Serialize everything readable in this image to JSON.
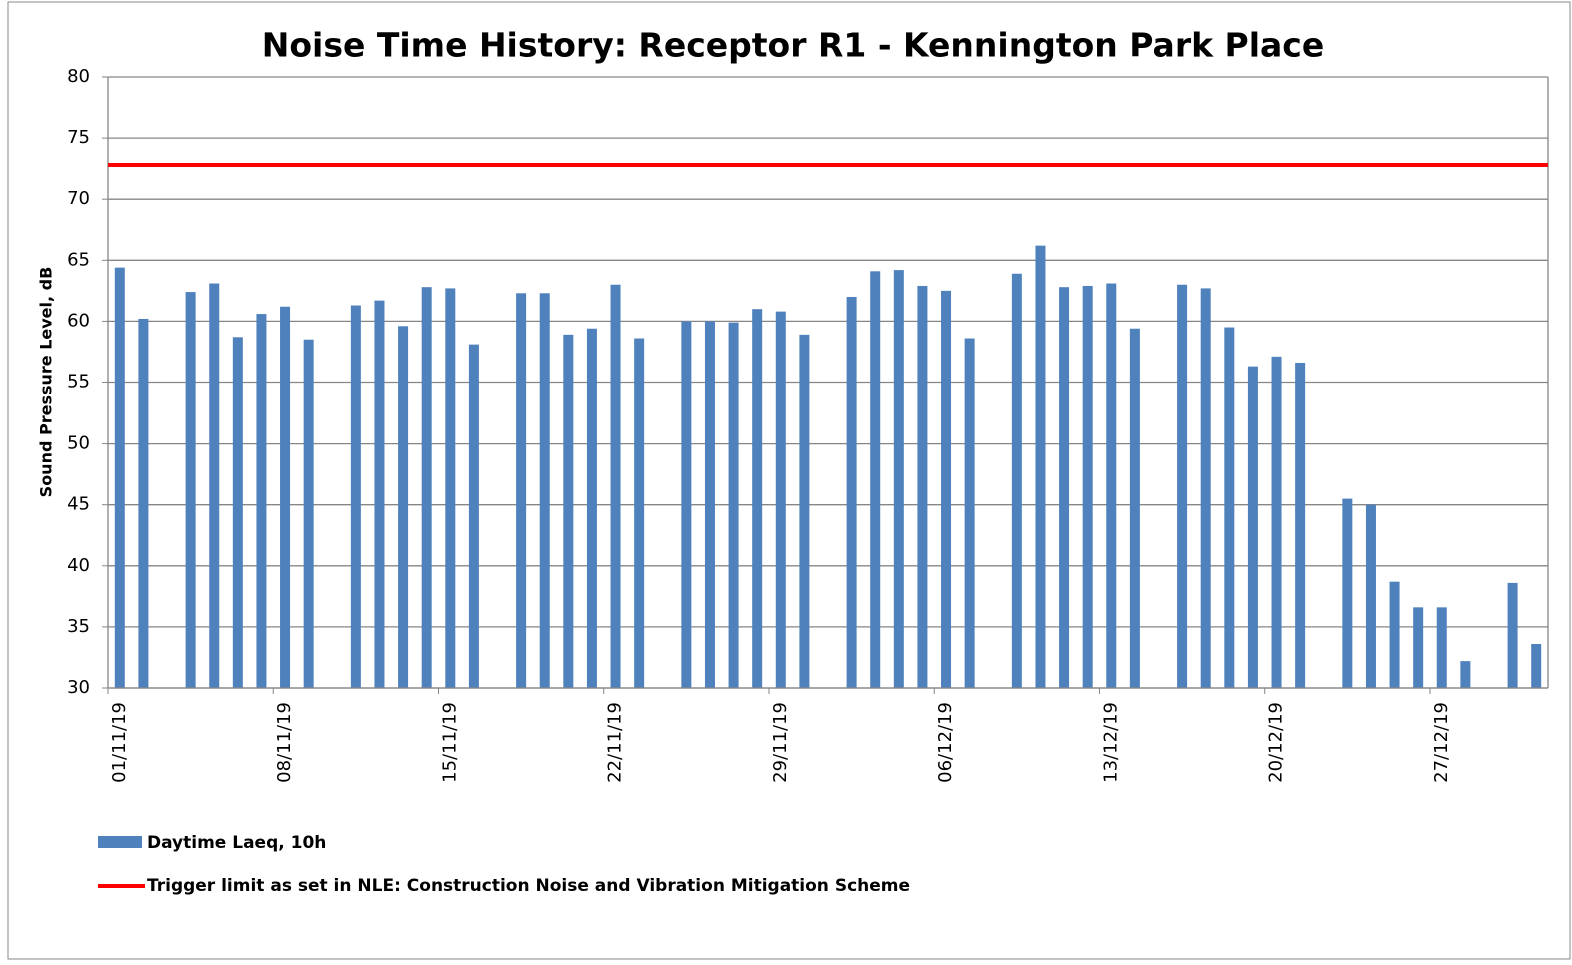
{
  "chart_data": {
    "type": "bar",
    "title": "Noise Time History: Receptor R1 - Kennington Park Place",
    "y_label": "Sound Pressure Level, dB",
    "categories": [
      "01/11/19",
      null,
      null,
      null,
      null,
      null,
      null,
      "08/11/19",
      null,
      null,
      null,
      null,
      null,
      null,
      "15/11/19",
      null,
      null,
      null,
      null,
      null,
      null,
      "22/11/19",
      null,
      null,
      null,
      null,
      null,
      null,
      "29/11/19",
      null,
      null,
      null,
      null,
      null,
      null,
      "06/12/19",
      null,
      null,
      null,
      null,
      null,
      null,
      "13/12/19",
      null,
      null,
      null,
      null,
      null,
      null,
      "20/12/19",
      null,
      null,
      null,
      null,
      null,
      null,
      "27/12/19",
      null,
      null,
      null,
      null
    ],
    "series": [
      {
        "name": "Daytime Laeq, 10h",
        "color": "#4f81bd",
        "values": [
          64.4,
          60.2,
          null,
          62.4,
          63.1,
          58.7,
          60.6,
          61.2,
          58.5,
          null,
          61.3,
          61.7,
          59.6,
          62.8,
          62.7,
          58.1,
          null,
          62.3,
          62.3,
          58.9,
          59.4,
          63.0,
          58.6,
          null,
          60.0,
          60.0,
          59.9,
          61.0,
          60.8,
          58.9,
          null,
          62.0,
          64.1,
          64.2,
          62.9,
          62.5,
          58.6,
          null,
          63.9,
          66.2,
          62.8,
          62.9,
          63.1,
          59.4,
          null,
          63.0,
          62.7,
          59.5,
          56.3,
          57.1,
          56.6,
          null,
          45.5,
          45.0,
          38.7,
          36.6,
          36.6,
          32.2,
          null,
          38.6,
          33.6
        ]
      }
    ],
    "threshold": {
      "name": "Trigger limit as set in NLE: Construction Noise and Vibration Mitigation Scheme",
      "value": 72.8,
      "color": "#ff0000"
    },
    "ylim": [
      30,
      80
    ],
    "yticks": [
      30,
      35,
      40,
      45,
      50,
      55,
      60,
      65,
      70,
      75,
      80
    ],
    "grid": true
  }
}
